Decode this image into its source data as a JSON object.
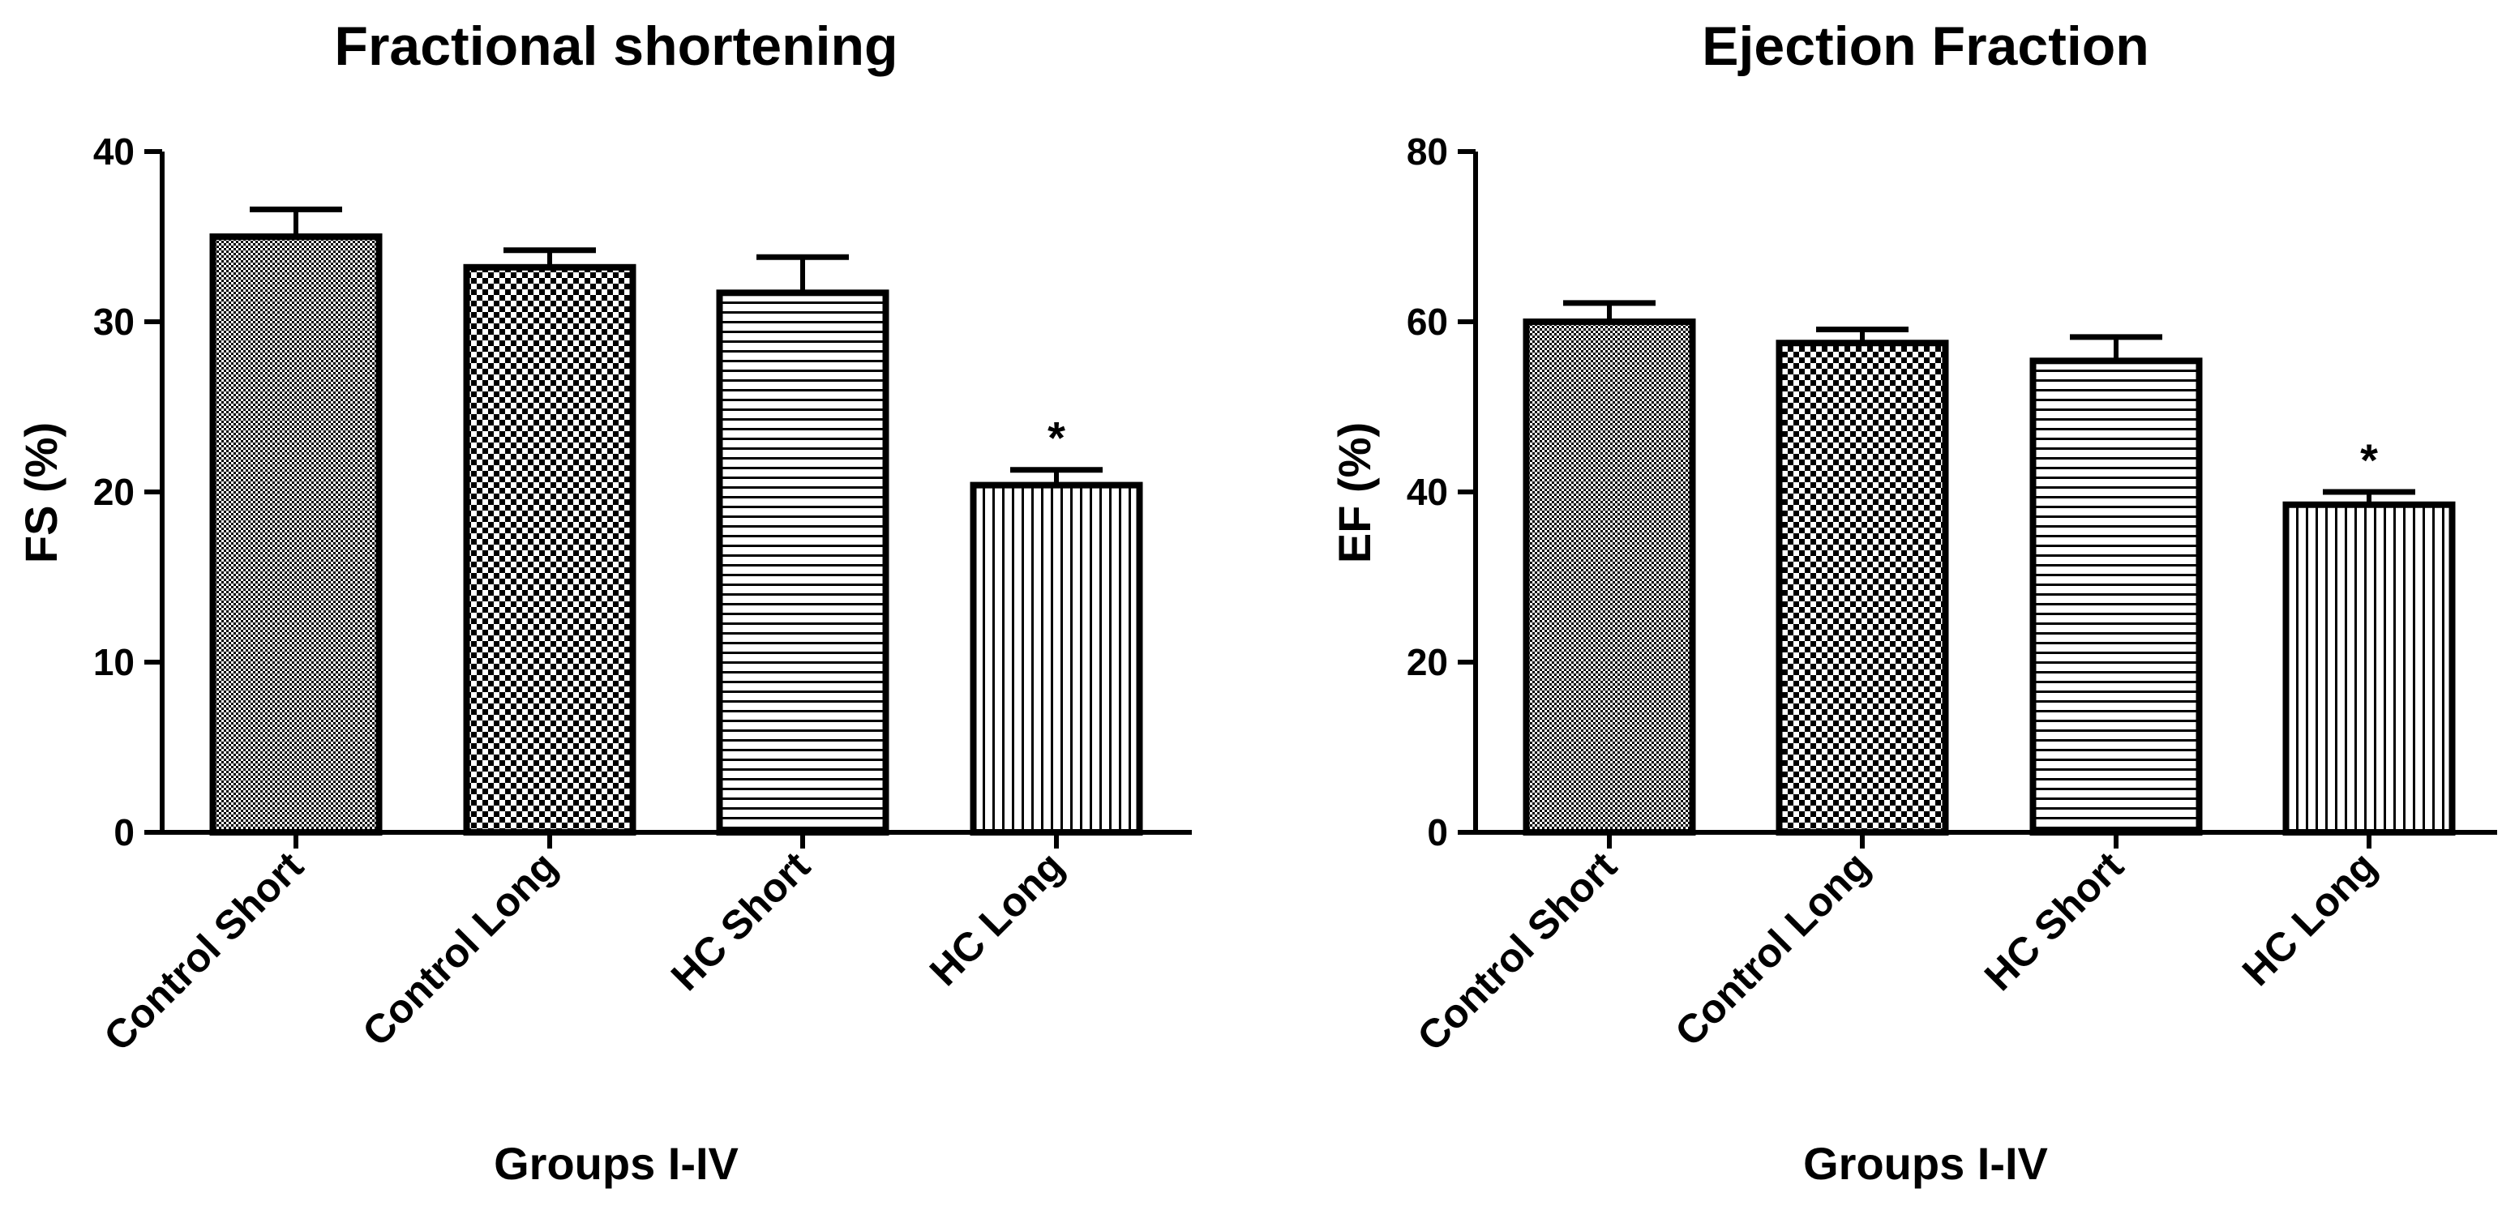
{
  "chart_data": [
    {
      "type": "bar",
      "title": "Fractional shortening",
      "xlabel": "Groups I-IV",
      "ylabel": "FS (%)",
      "ylim": [
        0,
        40
      ],
      "yticks": [
        "0",
        "10",
        "20",
        "30",
        "40"
      ],
      "categories": [
        "Control Short",
        "Control Long",
        "HC Short",
        "HC Long"
      ],
      "values": [
        35,
        33.2,
        31.7,
        20.4
      ],
      "errors": [
        1.6,
        1.0,
        2.1,
        0.9
      ],
      "annotations": [
        "",
        "",
        "",
        "*"
      ],
      "grid": false,
      "legend": "none"
    },
    {
      "type": "bar",
      "title": "Ejection Fraction",
      "xlabel": "Groups I-IV",
      "ylabel": "EF (%)",
      "ylim": [
        0,
        80
      ],
      "yticks": [
        "0",
        "20",
        "40",
        "60",
        "80"
      ],
      "categories": [
        "Control Short",
        "Control Long",
        "HC Short",
        "HC Long"
      ],
      "values": [
        60,
        57.5,
        55.4,
        38.5
      ],
      "errors": [
        2.2,
        1.6,
        2.8,
        1.5
      ],
      "annotations": [
        "",
        "",
        "",
        "*"
      ],
      "grid": false,
      "legend": "none"
    }
  ],
  "bar_patterns": [
    "fine-checker",
    "coarse-checker",
    "horizontal-lines",
    "vertical-lines"
  ],
  "colors": {
    "ink": "#000000",
    "background": "#ffffff"
  }
}
